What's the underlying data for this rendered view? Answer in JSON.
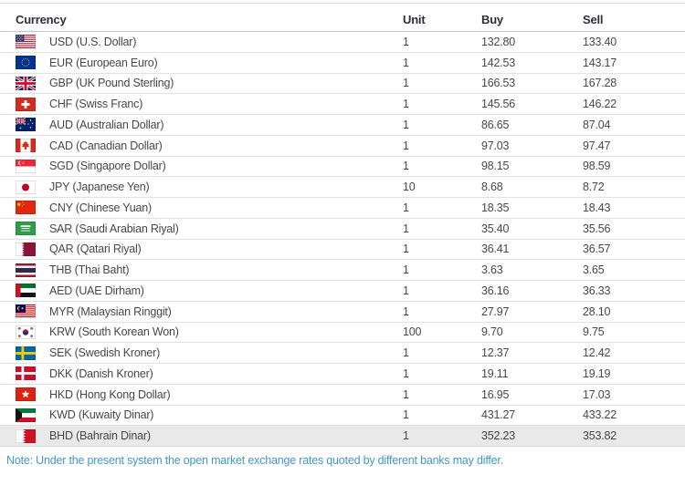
{
  "table": {
    "columns": {
      "currency": "Currency",
      "unit": "Unit",
      "buy": "Buy",
      "sell": "Sell"
    },
    "rows": [
      {
        "flag": "us",
        "currency": "USD (U.S. Dollar)",
        "unit": "1",
        "buy": "132.80",
        "sell": "133.40",
        "highlighted": false
      },
      {
        "flag": "eu",
        "currency": "EUR (European Euro)",
        "unit": "1",
        "buy": "142.53",
        "sell": "143.17",
        "highlighted": false
      },
      {
        "flag": "gb",
        "currency": "GBP (UK Pound Sterling)",
        "unit": "1",
        "buy": "166.53",
        "sell": "167.28",
        "highlighted": false
      },
      {
        "flag": "ch",
        "currency": "CHF (Swiss Franc)",
        "unit": "1",
        "buy": "145.56",
        "sell": "146.22",
        "highlighted": false
      },
      {
        "flag": "au",
        "currency": "AUD (Australian Dollar)",
        "unit": "1",
        "buy": "86.65",
        "sell": "87.04",
        "highlighted": false
      },
      {
        "flag": "ca",
        "currency": "CAD (Canadian Dollar)",
        "unit": "1",
        "buy": "97.03",
        "sell": "97.47",
        "highlighted": false
      },
      {
        "flag": "sg",
        "currency": "SGD (Singapore Dollar)",
        "unit": "1",
        "buy": "98.15",
        "sell": "98.59",
        "highlighted": false
      },
      {
        "flag": "jp",
        "currency": "JPY (Japanese Yen)",
        "unit": "10",
        "buy": "8.68",
        "sell": "8.72",
        "highlighted": false
      },
      {
        "flag": "cn",
        "currency": "CNY (Chinese Yuan)",
        "unit": "1",
        "buy": "18.35",
        "sell": "18.43",
        "highlighted": false
      },
      {
        "flag": "sa",
        "currency": "SAR (Saudi Arabian Riyal)",
        "unit": "1",
        "buy": "35.40",
        "sell": "35.56",
        "highlighted": false
      },
      {
        "flag": "qa",
        "currency": "QAR (Qatari Riyal)",
        "unit": "1",
        "buy": "36.41",
        "sell": "36.57",
        "highlighted": false
      },
      {
        "flag": "th",
        "currency": "THB (Thai Baht)",
        "unit": "1",
        "buy": "3.63",
        "sell": "3.65",
        "highlighted": false
      },
      {
        "flag": "ae",
        "currency": "AED (UAE Dirham)",
        "unit": "1",
        "buy": "36.16",
        "sell": "36.33",
        "highlighted": false
      },
      {
        "flag": "my",
        "currency": "MYR (Malaysian Ringgit)",
        "unit": "1",
        "buy": "27.97",
        "sell": "28.10",
        "highlighted": false
      },
      {
        "flag": "kr",
        "currency": "KRW (South Korean Won)",
        "unit": "100",
        "buy": "9.70",
        "sell": "9.75",
        "highlighted": false
      },
      {
        "flag": "se",
        "currency": "SEK (Swedish Kroner)",
        "unit": "1",
        "buy": "12.37",
        "sell": "12.42",
        "highlighted": false
      },
      {
        "flag": "dk",
        "currency": "DKK (Danish Kroner)",
        "unit": "1",
        "buy": "19.11",
        "sell": "19.19",
        "highlighted": false
      },
      {
        "flag": "hk",
        "currency": "HKD (Hong Kong Dollar)",
        "unit": "1",
        "buy": "16.95",
        "sell": "17.03",
        "highlighted": false
      },
      {
        "flag": "kw",
        "currency": "KWD (Kuwaity Dinar)",
        "unit": "1",
        "buy": "431.27",
        "sell": "433.22",
        "highlighted": false
      },
      {
        "flag": "bh",
        "currency": "BHD (Bahrain Dinar)",
        "unit": "1",
        "buy": "352.23",
        "sell": "353.82",
        "highlighted": true
      }
    ]
  },
  "note": "Note: Under the present system the open market exchange rates quoted by different banks may differ.",
  "colors": {
    "note_text": "#4396c8",
    "header_text": "#2e2e38",
    "row_text": "#47474f",
    "divider": "#e2e2e2",
    "highlight_row_bg": "#e9e9e9"
  }
}
